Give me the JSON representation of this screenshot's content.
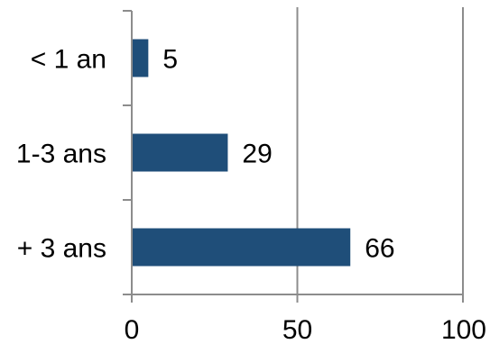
{
  "chart_data": {
    "type": "bar",
    "orientation": "horizontal",
    "categories": [
      "< 1 an",
      "1-3 ans",
      "+ 3 ans"
    ],
    "values": [
      5,
      29,
      66
    ],
    "xlim": [
      0,
      100
    ],
    "xticks": [
      0,
      50,
      100
    ],
    "xtick_labels": [
      "0",
      "50",
      "100"
    ],
    "grid": true,
    "bar_color": "#1f4e79",
    "grid_color": "#8c8c8c",
    "title": "",
    "xlabel": "",
    "ylabel": ""
  }
}
